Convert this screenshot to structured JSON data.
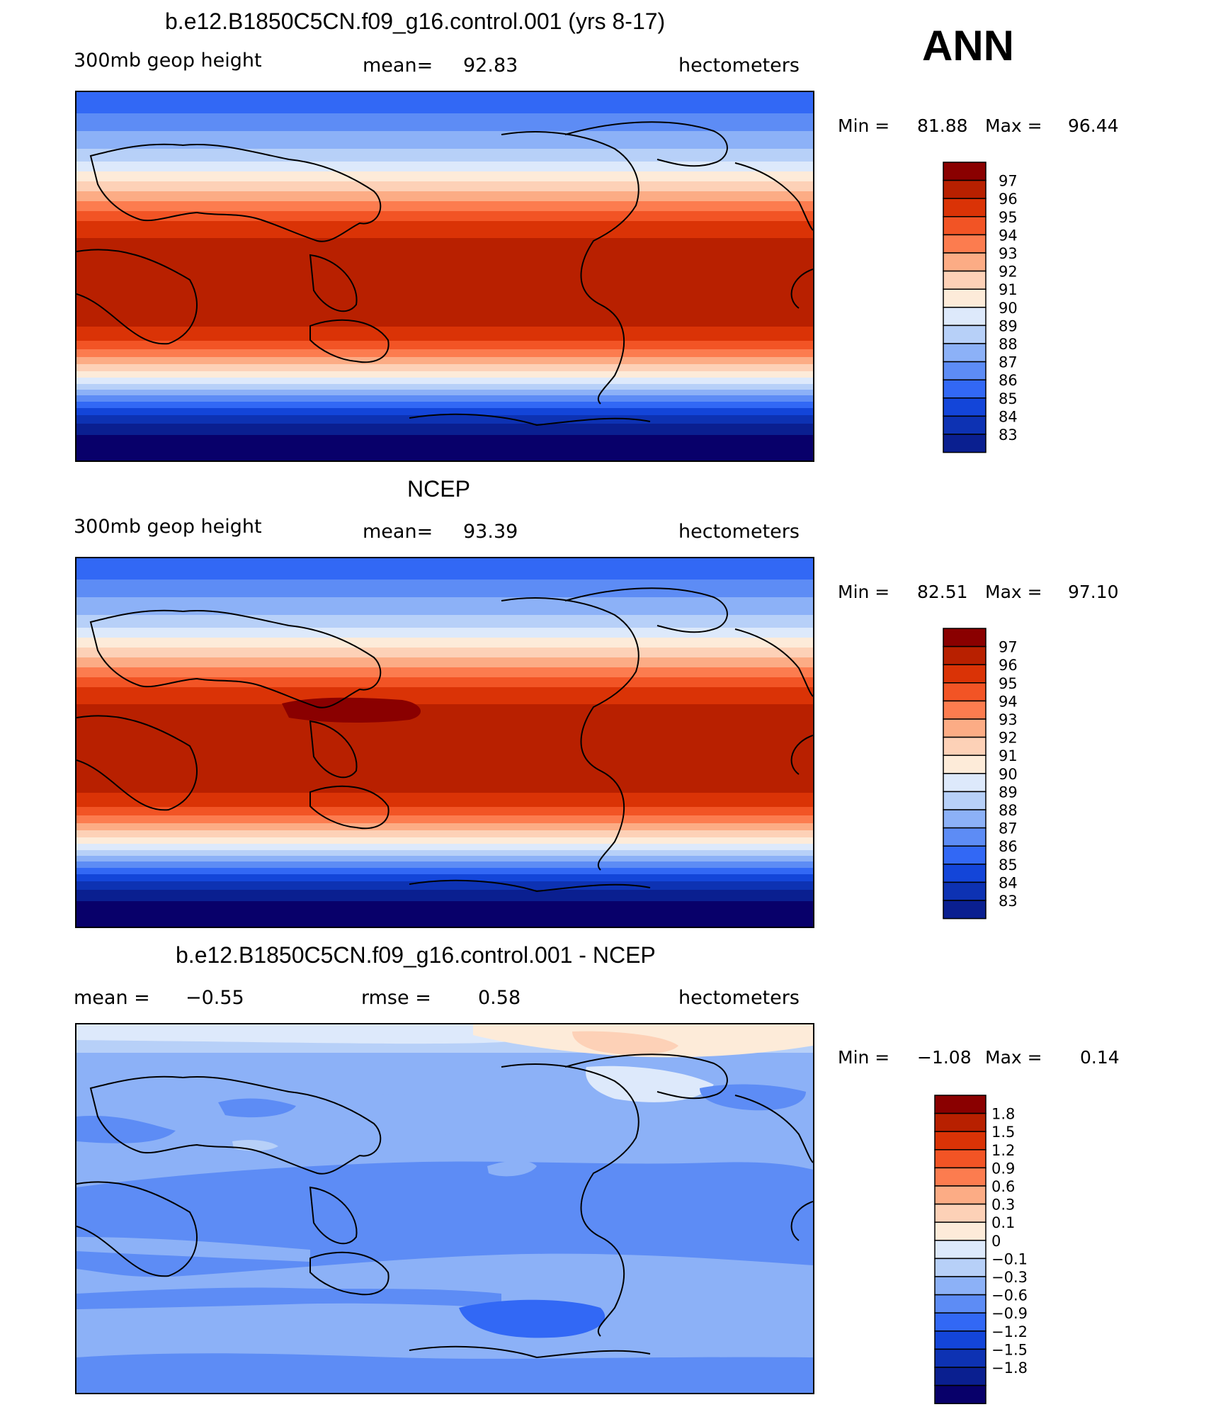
{
  "season": "ANN",
  "palette_field": [
    "#08006a",
    "#0a1f90",
    "#0d32b3",
    "#1345d9",
    "#3268f5",
    "#5d8cf5",
    "#8cb1f7",
    "#b7d0f8",
    "#dde9fb",
    "#fdebd9",
    "#fdd1b7",
    "#fcac85",
    "#fc7c4f",
    "#f25425",
    "#da3306",
    "#b82000",
    "#8a0000"
  ],
  "palette_diff": [
    "#08006a",
    "#0a1f90",
    "#0d32b3",
    "#1345d9",
    "#3268f5",
    "#5d8cf5",
    "#8cb1f7",
    "#b7d0f8",
    "#dde9fb",
    "#fdebd9",
    "#fdd1b7",
    "#fcac85",
    "#fc7c4f",
    "#f25425",
    "#da3306",
    "#b82000",
    "#8a0000"
  ],
  "panels": [
    {
      "title": "b.e12.B1850C5CN.f09_g16.control.001 (yrs 8-17)",
      "left": "300mb  geop  height",
      "center_label": "mean=",
      "center_value": "92.83",
      "right": "hectometers",
      "min_label": "Min  =",
      "min_value": "81.88",
      "max_label": "Max  =",
      "max_value": "96.44",
      "colorbar_labels": [
        "97",
        "96",
        "95",
        "94",
        "93",
        "92",
        "91",
        "90",
        "89",
        "88",
        "87",
        "86",
        "85",
        "84",
        "83"
      ]
    },
    {
      "title": "NCEP",
      "left": "300mb  geop  height",
      "center_label": "mean=",
      "center_value": "93.39",
      "right": "hectometers",
      "min_label": "Min  =",
      "min_value": "82.51",
      "max_label": "Max  =",
      "max_value": "97.10",
      "colorbar_labels": [
        "97",
        "96",
        "95",
        "94",
        "93",
        "92",
        "91",
        "90",
        "89",
        "88",
        "87",
        "86",
        "85",
        "84",
        "83"
      ]
    },
    {
      "title": "b.e12.B1850C5CN.f09_g16.control.001 - NCEP",
      "left_label": "mean  =",
      "left_value": "−0.55",
      "center_label": "rmse  =",
      "center_value": "0.58",
      "right": "hectometers",
      "min_label": "Min  =",
      "min_value": "−1.08",
      "max_label": "Max  =",
      "max_value": "0.14",
      "colorbar_labels": [
        "1.8",
        "1.5",
        "1.2",
        "0.9",
        "0.6",
        "0.3",
        "0.1",
        "0",
        "−0.1",
        "−0.3",
        "−0.6",
        "−0.9",
        "−1.2",
        "−1.5",
        "−1.8"
      ]
    }
  ]
}
